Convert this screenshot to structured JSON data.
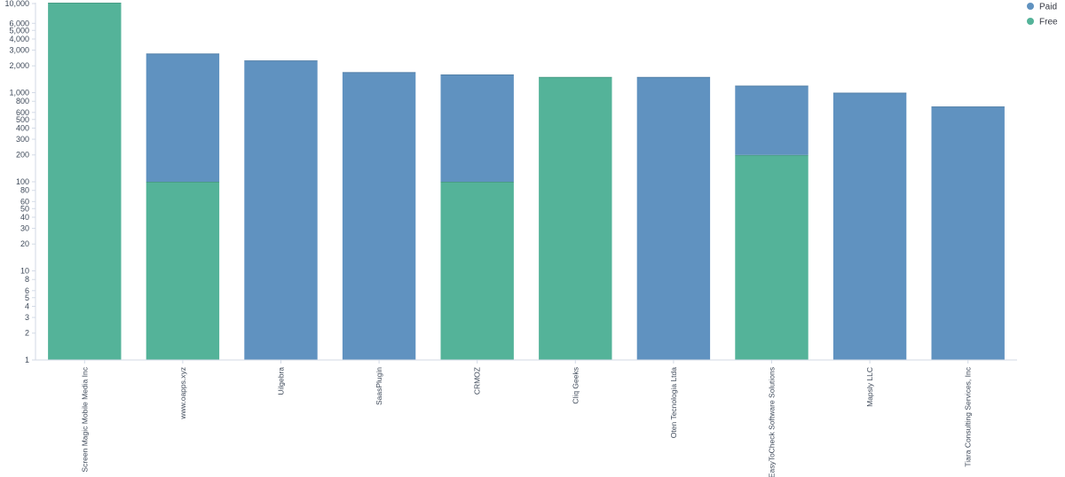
{
  "chart_data": {
    "type": "bar",
    "stacked": true,
    "y_scale": "log",
    "ylim": [
      1,
      10000
    ],
    "y_ticks": [
      1,
      2,
      3,
      4,
      5,
      6,
      8,
      10,
      20,
      30,
      40,
      50,
      60,
      80,
      100,
      200,
      300,
      400,
      500,
      600,
      800,
      1000,
      2000,
      3000,
      4000,
      5000,
      6000,
      10000
    ],
    "y_tick_labels": [
      "1",
      "2",
      "3",
      "4",
      "5",
      "6",
      "8",
      "10",
      "20",
      "30",
      "40",
      "50",
      "60",
      "80",
      "100",
      "200",
      "300",
      "400",
      "500",
      "600",
      "800",
      "1,000",
      "2,000",
      "3,000",
      "4,000",
      "5,000",
      "6,000",
      "10,000"
    ],
    "grid": false,
    "legend_position": "top-right",
    "title": "",
    "xlabel": "",
    "ylabel": "",
    "categories": [
      "Screen Magic Mobile Media Inc",
      "www.oapps.xyz",
      "Uilgebra",
      "SaasPlugin",
      "CRMOZ",
      "Cliq Geeks",
      "Oten Tecnologia Ltda",
      "EasyToCheck Software Solutions",
      "Mapsly LLC",
      "Tiara Consulting Services, Inc"
    ],
    "series": [
      {
        "name": "Free",
        "color": "#54b399",
        "values": [
          11000,
          100,
          0,
          0,
          100,
          1500,
          0,
          200,
          0,
          0
        ]
      },
      {
        "name": "Paid",
        "color": "#6092c0",
        "values": [
          0,
          2650,
          2300,
          1700,
          1500,
          0,
          1500,
          1000,
          1000,
          700
        ]
      }
    ]
  },
  "legend": {
    "items": [
      {
        "label": "Paid",
        "color": "#6092c0"
      },
      {
        "label": "Free",
        "color": "#54b399"
      }
    ]
  }
}
